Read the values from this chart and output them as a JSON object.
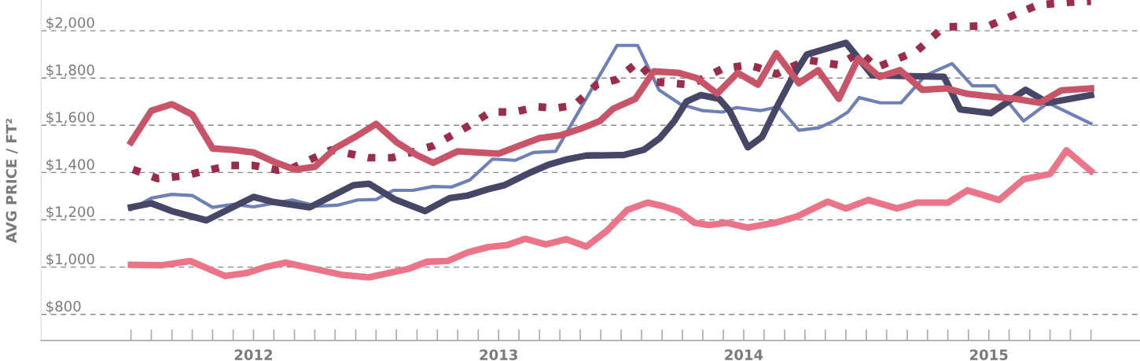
{
  "chart_data": {
    "type": "line",
    "ylabel": "AVG PRICE / FT²",
    "xlim": [
      2011.633,
      2016.117
    ],
    "ylim": [
      690,
      2130
    ],
    "xticks": [
      {
        "value": 2012.0,
        "label": null
      },
      {
        "value": 2012.083,
        "label": null
      },
      {
        "value": 2012.167,
        "label": null
      },
      {
        "value": 2012.25,
        "label": null
      },
      {
        "value": 2012.333,
        "label": null
      },
      {
        "value": 2012.417,
        "label": null
      },
      {
        "value": 2012.5,
        "label": "2012"
      },
      {
        "value": 2012.583,
        "label": null
      },
      {
        "value": 2012.667,
        "label": null
      },
      {
        "value": 2012.75,
        "label": null
      },
      {
        "value": 2012.833,
        "label": null
      },
      {
        "value": 2012.917,
        "label": null
      },
      {
        "value": 2013.0,
        "label": null
      },
      {
        "value": 2013.083,
        "label": null
      },
      {
        "value": 2013.167,
        "label": null
      },
      {
        "value": 2013.25,
        "label": null
      },
      {
        "value": 2013.333,
        "label": null
      },
      {
        "value": 2013.417,
        "label": null
      },
      {
        "value": 2013.5,
        "label": "2013"
      },
      {
        "value": 2013.583,
        "label": null
      },
      {
        "value": 2013.667,
        "label": null
      },
      {
        "value": 2013.75,
        "label": null
      },
      {
        "value": 2013.833,
        "label": null
      },
      {
        "value": 2013.917,
        "label": null
      },
      {
        "value": 2014.0,
        "label": null
      },
      {
        "value": 2014.083,
        "label": null
      },
      {
        "value": 2014.167,
        "label": null
      },
      {
        "value": 2014.25,
        "label": null
      },
      {
        "value": 2014.333,
        "label": null
      },
      {
        "value": 2014.417,
        "label": null
      },
      {
        "value": 2014.5,
        "label": "2014"
      },
      {
        "value": 2014.583,
        "label": null
      },
      {
        "value": 2014.667,
        "label": null
      },
      {
        "value": 2014.75,
        "label": null
      },
      {
        "value": 2014.833,
        "label": null
      },
      {
        "value": 2014.917,
        "label": null
      },
      {
        "value": 2015.0,
        "label": null
      },
      {
        "value": 2015.083,
        "label": null
      },
      {
        "value": 2015.167,
        "label": null
      },
      {
        "value": 2015.25,
        "label": null
      },
      {
        "value": 2015.333,
        "label": null
      },
      {
        "value": 2015.417,
        "label": null
      },
      {
        "value": 2015.5,
        "label": "2015"
      },
      {
        "value": 2015.583,
        "label": null
      },
      {
        "value": 2015.667,
        "label": null
      },
      {
        "value": 2015.75,
        "label": null
      },
      {
        "value": 2015.833,
        "label": null
      },
      {
        "value": 2015.917,
        "label": null
      }
    ],
    "yticks": [
      {
        "value": 800,
        "label": "$800"
      },
      {
        "value": 1000,
        "label": "$1,000"
      },
      {
        "value": 1200,
        "label": "$1,200"
      },
      {
        "value": 1400,
        "label": "$1,400"
      },
      {
        "value": 1600,
        "label": "$1,600"
      },
      {
        "value": 1800,
        "label": "$1,800"
      },
      {
        "value": 2000,
        "label": "$2,000"
      }
    ],
    "grid": "y",
    "marker": "none",
    "series": [
      {
        "color": "#6d80b8",
        "line_style": "solid",
        "x": [
          2012.0,
          2012.083,
          2012.167,
          2012.25,
          2012.333,
          2012.417,
          2012.5,
          2012.583,
          2012.658,
          2012.758,
          2012.842,
          2012.925,
          2013.0,
          2013.071,
          2013.15,
          2013.233,
          2013.308,
          2013.383,
          2013.475,
          2013.567,
          2013.642,
          2013.733,
          2013.983,
          2014.067,
          2014.154,
          2014.242,
          2014.333,
          2014.413,
          2014.471,
          2014.567,
          2014.642,
          2014.725,
          2014.808,
          2014.867,
          2014.925,
          2014.971,
          2015.058,
          2015.142,
          2015.242,
          2015.35,
          2015.433,
          2015.525,
          2015.642,
          2015.742,
          2015.917
        ],
        "values": [
          1244,
          1292,
          1308,
          1303,
          1253,
          1266,
          1255,
          1270,
          1284,
          1258,
          1262,
          1284,
          1286,
          1325,
          1325,
          1341,
          1339,
          1369,
          1457,
          1452,
          1485,
          1490,
          1938,
          1938,
          1750,
          1689,
          1662,
          1656,
          1675,
          1662,
          1678,
          1579,
          1590,
          1618,
          1656,
          1717,
          1695,
          1695,
          1811,
          1861,
          1767,
          1767,
          1618,
          1695,
          1607
        ]
      },
      {
        "color": "#9b2c4a",
        "line_style": "dotted",
        "x": [
          2012.008,
          2012.108,
          2012.217,
          2012.313,
          2012.408,
          2012.5,
          2012.6,
          2012.658,
          2012.817,
          2012.971,
          2013.067,
          2013.158,
          2013.233,
          2013.375,
          2013.467,
          2013.563,
          2013.658,
          2013.733,
          2013.808,
          2013.9,
          2013.983,
          2014.067,
          2014.142,
          2014.283,
          2014.413,
          2014.517,
          2014.558,
          2014.633,
          2014.758,
          2014.888,
          2014.975,
          2015.042,
          2015.208,
          2015.317,
          2015.5,
          2015.7,
          2015.825,
          2015.917
        ],
        "values": [
          1413,
          1375,
          1386,
          1410,
          1430,
          1430,
          1410,
          1419,
          1496,
          1463,
          1463,
          1490,
          1513,
          1596,
          1656,
          1656,
          1678,
          1673,
          1684,
          1772,
          1794,
          1866,
          1783,
          1772,
          1839,
          1855,
          1844,
          1817,
          1877,
          1855,
          1910,
          1844,
          1916,
          2016,
          2021,
          2109,
          2120,
          2125
        ]
      },
      {
        "color": "#464766",
        "line_style": "solid",
        "x": [
          2012.0,
          2012.083,
          2012.167,
          2012.308,
          2012.5,
          2012.583,
          2012.729,
          2012.908,
          2012.971,
          2013.075,
          2013.2,
          2013.3,
          2013.375,
          2013.458,
          2013.525,
          2013.633,
          2013.708,
          2013.783,
          2013.858,
          2013.992,
          2014.008,
          2014.092,
          2014.158,
          2014.217,
          2014.267,
          2014.325,
          2014.4,
          2014.442,
          2014.517,
          2014.575,
          2014.633,
          2014.7,
          2014.758,
          2014.917,
          2015.025,
          2015.317,
          2015.383,
          2015.508,
          2015.65,
          2015.742,
          2015.917
        ],
        "values": [
          1253,
          1270,
          1237,
          1198,
          1297,
          1275,
          1253,
          1347,
          1353,
          1287,
          1237,
          1292,
          1303,
          1330,
          1347,
          1402,
          1435,
          1457,
          1472,
          1474,
          1474,
          1496,
          1546,
          1618,
          1701,
          1728,
          1712,
          1662,
          1507,
          1551,
          1673,
          1805,
          1900,
          1949,
          1811,
          1805,
          1667,
          1651,
          1750,
          1695,
          1728
        ]
      },
      {
        "color": "#c95467",
        "line_style": "solid",
        "x": [
          2012.0,
          2012.083,
          2012.167,
          2012.25,
          2012.333,
          2012.417,
          2012.5,
          2012.583,
          2012.667,
          2012.75,
          2012.833,
          2012.917,
          2013.0,
          2013.083,
          2013.167,
          2013.233,
          2013.333,
          2013.417,
          2013.5,
          2013.583,
          2013.667,
          2013.75,
          2013.833,
          2013.913,
          2013.967,
          2014.058,
          2014.133,
          2014.233,
          2014.308,
          2014.392,
          2014.475,
          2014.558,
          2014.633,
          2014.725,
          2014.804,
          2014.888,
          2014.967,
          2015.054,
          2015.138,
          2015.228,
          2015.329,
          2015.408,
          2015.508,
          2015.608,
          2015.708,
          2015.796,
          2015.917
        ],
        "values": [
          1529,
          1662,
          1689,
          1645,
          1502,
          1496,
          1485,
          1446,
          1413,
          1424,
          1503,
          1552,
          1606,
          1529,
          1474,
          1441,
          1490,
          1485,
          1480,
          1513,
          1546,
          1557,
          1585,
          1618,
          1670,
          1712,
          1828,
          1822,
          1800,
          1734,
          1822,
          1772,
          1905,
          1778,
          1833,
          1712,
          1883,
          1805,
          1833,
          1750,
          1756,
          1734,
          1722,
          1712,
          1695,
          1748,
          1756
        ]
      },
      {
        "color": "#ec7489",
        "line_style": "solid",
        "x": [
          2012.0,
          2012.125,
          2012.242,
          2012.383,
          2012.471,
          2012.55,
          2012.629,
          2012.746,
          2012.858,
          2012.971,
          2013.133,
          2013.208,
          2013.292,
          2013.375,
          2013.458,
          2013.533,
          2013.608,
          2013.692,
          2013.775,
          2013.858,
          2013.942,
          2014.025,
          2014.108,
          2014.171,
          2014.233,
          2014.3,
          2014.358,
          2014.433,
          2014.517,
          2014.625,
          2014.717,
          2014.842,
          2014.917,
          2015.008,
          2015.125,
          2015.208,
          2015.333,
          2015.413,
          2015.542,
          2015.642,
          2015.75,
          2015.817,
          2015.917
        ],
        "values": [
          1010,
          1008,
          1026,
          963,
          975,
          1001,
          1019,
          993,
          968,
          957,
          993,
          1023,
          1026,
          1063,
          1085,
          1093,
          1120,
          1096,
          1118,
          1087,
          1154,
          1242,
          1273,
          1258,
          1237,
          1187,
          1178,
          1187,
          1167,
          1187,
          1214,
          1277,
          1248,
          1284,
          1248,
          1273,
          1273,
          1325,
          1284,
          1372,
          1394,
          1494,
          1406
        ]
      }
    ]
  }
}
